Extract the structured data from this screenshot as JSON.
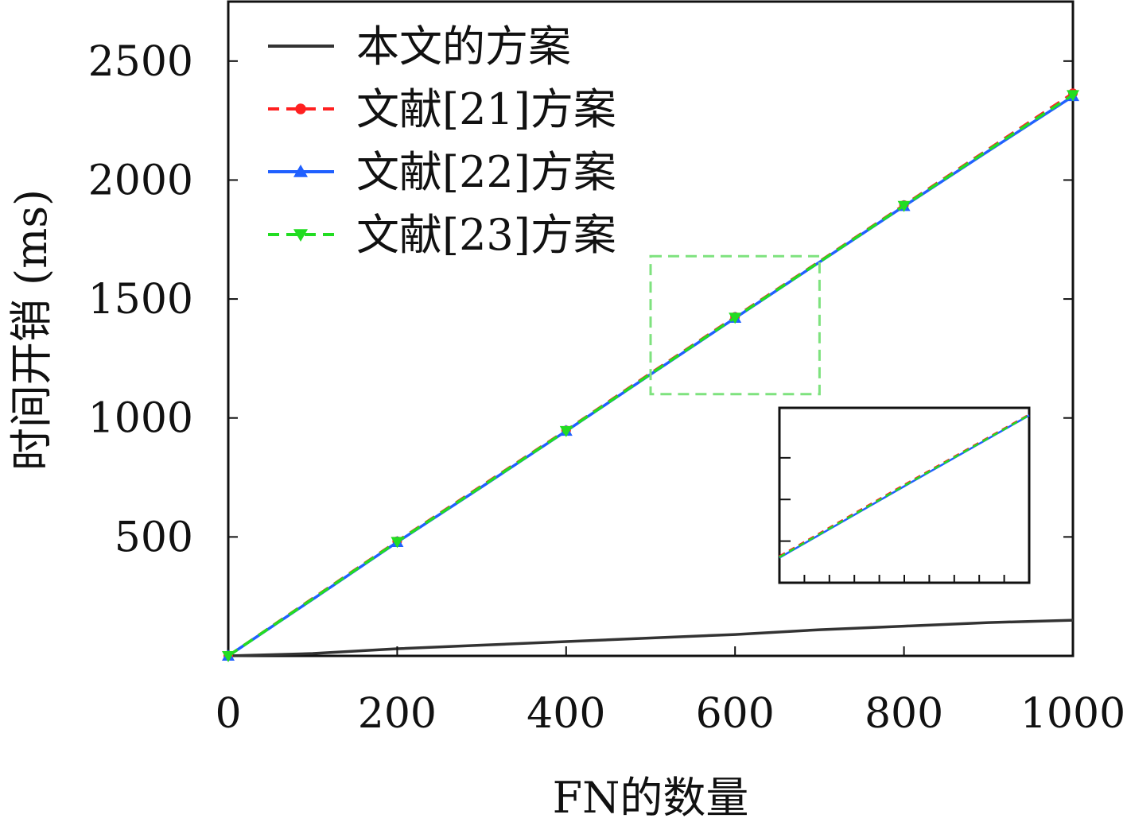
{
  "chart_data": {
    "type": "line",
    "title": "",
    "xlabel": "FN的数量",
    "ylabel": "时间开销 (ms)",
    "xlim": [
      0,
      1000
    ],
    "ylim": [
      0,
      2750
    ],
    "x_ticks": [
      0,
      200,
      400,
      600,
      800,
      1000
    ],
    "y_ticks": [
      500,
      1000,
      1500,
      2000,
      2500
    ],
    "grid": false,
    "legend_position": "top-left",
    "x": [
      0,
      100,
      200,
      300,
      400,
      500,
      600,
      700,
      800,
      900,
      1000
    ],
    "series": [
      {
        "name": "本文的方案",
        "color": "#333333",
        "line_style": "solid",
        "marker": "none",
        "values": [
          0,
          10,
          30,
          45,
          60,
          75,
          90,
          110,
          125,
          140,
          150
        ]
      },
      {
        "name": "文献[21]方案",
        "color": "#ff2020",
        "line_style": "dashed",
        "marker": "circle",
        "values": [
          0,
          242,
          482,
          715,
          948,
          1188,
          1425,
          1658,
          1895,
          2130,
          2365
        ]
      },
      {
        "name": "文献[22]方案",
        "color": "#2060ff",
        "line_style": "solid",
        "marker": "triangle-up",
        "values": [
          0,
          238,
          478,
          710,
          945,
          1183,
          1420,
          1655,
          1890,
          2122,
          2352
        ]
      },
      {
        "name": "文献[23]方案",
        "color": "#22dd22",
        "line_style": "dashed",
        "marker": "triangle-down",
        "values": [
          0,
          240,
          480,
          712,
          946,
          1185,
          1422,
          1656,
          1892,
          2126,
          2358
        ]
      }
    ],
    "zoom_region": {
      "x_range": [
        500,
        700
      ],
      "y_range": [
        1100,
        1680
      ],
      "color": "#7ee27e"
    },
    "inset": {
      "tick_labels_shown": false
    }
  }
}
